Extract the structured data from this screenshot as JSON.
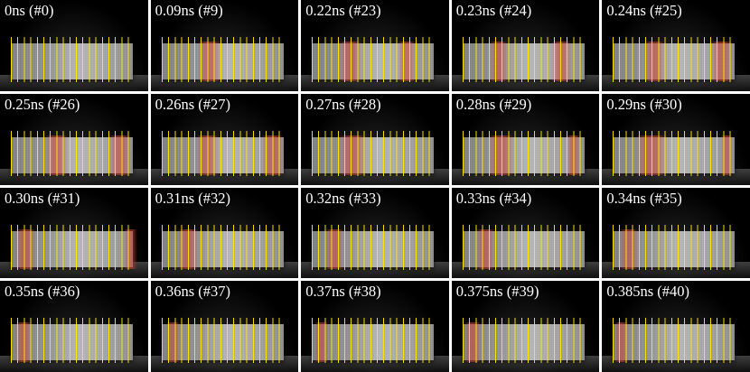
{
  "frames": [
    {
      "label": "0ns (#0)"
    },
    {
      "label": "0.09ns (#9)"
    },
    {
      "label": "0.22ns (#23)"
    },
    {
      "label": "0.23ns (#24)"
    },
    {
      "label": "0.24ns (#25)"
    },
    {
      "label": "0.25ns (#26)"
    },
    {
      "label": "0.26ns (#27)"
    },
    {
      "label": "0.27ns (#28)"
    },
    {
      "label": "0.28ns (#29)"
    },
    {
      "label": "0.29ns (#30)"
    },
    {
      "label": "0.30ns (#31)"
    },
    {
      "label": "0.31ns (#32)"
    },
    {
      "label": "0.32ns (#33)"
    },
    {
      "label": "0.33ns (#34)"
    },
    {
      "label": "0.34ns (#35)"
    },
    {
      "label": "0.35ns (#36)"
    },
    {
      "label": "0.36ns (#37)"
    },
    {
      "label": "0.37ns (#38)"
    },
    {
      "label": "0.375ns (#39)"
    },
    {
      "label": "0.385ns (#40)"
    }
  ],
  "colors": {
    "background": "#000000",
    "gridlines": "#ffe600",
    "highlight": "#d2463c",
    "label": "#ffffff"
  }
}
